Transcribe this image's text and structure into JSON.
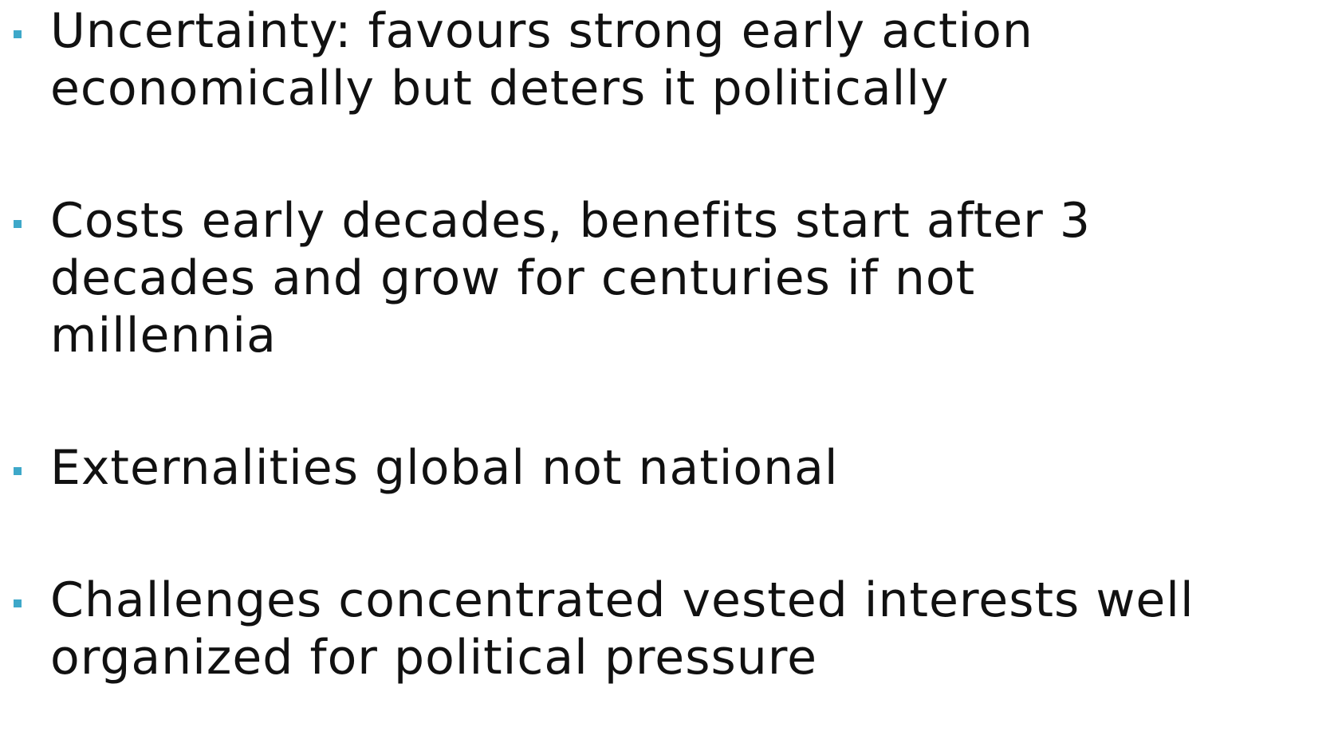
{
  "bullets": [
    {
      "lines": [
        "Uncertainty: favours strong early action",
        "economically but deters it politically"
      ]
    },
    {
      "lines": [
        "Costs early decades, benefits start after 3",
        "decades and grow for centuries if not",
        "millennia"
      ]
    },
    {
      "lines": [
        "Externalities global not national"
      ]
    },
    {
      "lines": [
        "Challenges concentrated vested interests well",
        "organized for political pressure"
      ]
    }
  ]
}
